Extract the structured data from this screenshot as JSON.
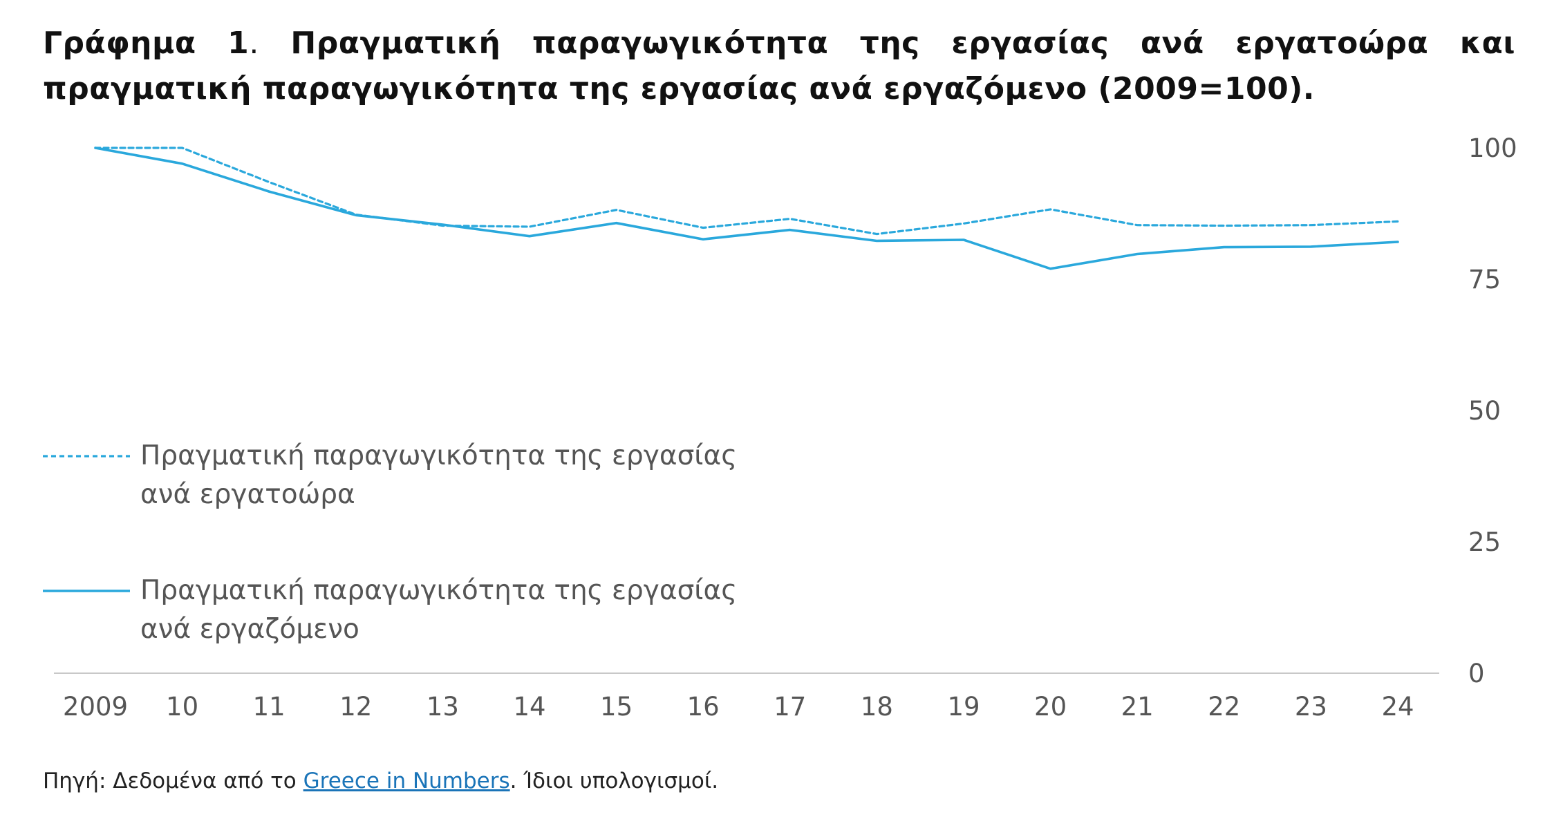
{
  "title": {
    "prefix": "Γράφημα 1",
    "separator": ".",
    "text": "Πραγματική παραγωγικότητα της εργασίας ανά εργατοώρα και πραγματική παραγωγικότητα της εργασίας ανά εργαζόμενο (2009=100)."
  },
  "colors": {
    "line": "#2aa8dc",
    "axis": "#c8c8c8"
  },
  "chart_data": {
    "type": "line",
    "categories": [
      "2009",
      "10",
      "11",
      "12",
      "13",
      "14",
      "15",
      "16",
      "17",
      "18",
      "19",
      "20",
      "21",
      "22",
      "23",
      "24"
    ],
    "series": [
      {
        "name": "Πραγματική παραγωγικότητα της εργασίας ανά εργατοώρα",
        "style": "dashed",
        "legend_lines": [
          "Πραγματική παραγωγικότητα της εργασίας",
          "ανά εργατοώρα"
        ],
        "values": [
          100,
          100,
          93.5,
          87.3,
          85.2,
          85.0,
          88.2,
          84.8,
          86.5,
          83.6,
          85.6,
          88.3,
          85.3,
          85.2,
          85.3,
          86.0
        ]
      },
      {
        "name": "Πραγματική παραγωγικότητα της εργασίας ανά εργαζόμενο",
        "style": "solid",
        "legend_lines": [
          "Πραγματική παραγωγικότητα της εργασίας",
          "ανά εργαζόμενο"
        ],
        "values": [
          100,
          97.0,
          91.7,
          87.2,
          85.4,
          83.2,
          85.7,
          82.6,
          84.4,
          82.3,
          82.5,
          77.0,
          79.8,
          81.1,
          81.2,
          82.1
        ]
      }
    ],
    "y_ticks": [
      "100",
      "75",
      "50",
      "25",
      "0"
    ],
    "ylim": [
      0,
      100
    ],
    "y_axis_side": "right",
    "legend_position": "left-middle",
    "grid": false
  },
  "source": {
    "prefix": "Πηγή: Δεδομένα από το ",
    "link_text": "Greece in Numbers",
    "suffix": ". Ίδιοι υπολογισμοί."
  }
}
